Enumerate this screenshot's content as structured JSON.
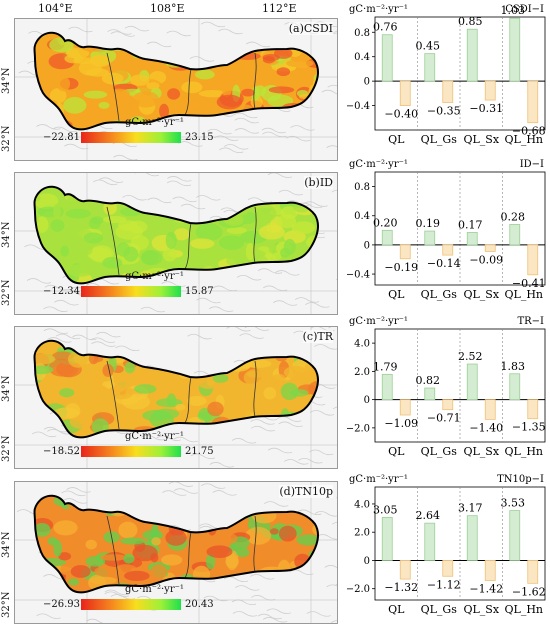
{
  "longitude_labels": [
    "104°E",
    "108°E",
    "112°E"
  ],
  "latitude_labels": [
    "34°N",
    "32°N"
  ],
  "maps": [
    {
      "label": "(a)CSDI",
      "unit": "gC·m⁻²·yr⁻¹",
      "min": "−22.81",
      "max": "23.15",
      "palette": [
        "#f5a623",
        "#f7c52a",
        "#b9e63a",
        "#ef5a2a"
      ]
    },
    {
      "label": "(b)ID",
      "unit": "gC·m⁻²·yr⁻¹",
      "min": "−12.34",
      "max": "15.87",
      "palette": [
        "#a9e23e",
        "#c7e83a",
        "#8ee044",
        "#e0e33a"
      ]
    },
    {
      "label": "(c)TR",
      "unit": "gC·m⁻²·yr⁻¹",
      "min": "−18.52",
      "max": "21.75",
      "palette": [
        "#f2b52e",
        "#f5c735",
        "#7ad84a",
        "#ef7a2b"
      ]
    },
    {
      "label": "(d)TN10p",
      "unit": "gC·m⁻²·yr⁻¹",
      "min": "−26.93",
      "max": "20.43",
      "palette": [
        "#f18c2a",
        "#f6b032",
        "#5ed24e",
        "#e8542a"
      ]
    }
  ],
  "colors": {
    "positive_fill": "#d4ecd1",
    "positive_stroke": "#9bcf95",
    "negative_fill": "#fbe6c3",
    "negative_stroke": "#efc178"
  },
  "chart_data": [
    {
      "type": "bar",
      "title": "CSDI−I",
      "ylabel": "gC·m⁻²·yr⁻¹",
      "categories": [
        "QL",
        "QL_Gs",
        "QL_Sx",
        "QL_Hn"
      ],
      "series": [
        {
          "values": [
            0.76,
            0.45,
            0.85,
            1.03
          ],
          "labels": [
            "0.76",
            "0.45",
            "0.85",
            "1.03"
          ]
        },
        {
          "values": [
            -0.4,
            -0.35,
            -0.31,
            -0.68
          ],
          "labels": [
            "−0.40",
            "−0.35",
            "−0.31",
            "−0.68"
          ]
        }
      ],
      "ylim": [
        -0.8,
        1.05
      ],
      "yticks": [
        0.8,
        0.4,
        0,
        -0.4
      ],
      "ytick_labels": [
        "0.8",
        "0.4",
        "0",
        "−0.4"
      ]
    },
    {
      "type": "bar",
      "title": "ID−I",
      "ylabel": "gC·m⁻²·yr⁻¹",
      "categories": [
        "QL",
        "QL_Gs",
        "QL_Sx",
        "QL_Hn"
      ],
      "series": [
        {
          "values": [
            0.2,
            0.19,
            0.17,
            0.28
          ],
          "labels": [
            "0.20",
            "0.19",
            "0.17",
            "0.28"
          ]
        },
        {
          "values": [
            -0.19,
            -0.14,
            -0.09,
            -0.41
          ],
          "labels": [
            "−0.19",
            "−0.14",
            "−0.09",
            "−0.41"
          ]
        }
      ],
      "ylim": [
        -0.55,
        1.0
      ],
      "yticks": [
        0.8,
        0.4,
        0,
        -0.4
      ],
      "ytick_labels": [
        "0.8",
        "0.4",
        "0",
        "−0.4"
      ]
    },
    {
      "type": "bar",
      "title": "TR−I",
      "ylabel": "gC·m⁻²·yr⁻¹",
      "categories": [
        "QL",
        "QL_Gs",
        "QL_Sx",
        "QL_Hn"
      ],
      "series": [
        {
          "values": [
            1.79,
            0.82,
            2.52,
            1.83
          ],
          "labels": [
            "1.79",
            "0.82",
            "2.52",
            "1.83"
          ]
        },
        {
          "values": [
            -1.09,
            -0.71,
            -1.4,
            -1.35
          ],
          "labels": [
            "−1.09",
            "−0.71",
            "−1.40",
            "−1.35"
          ]
        }
      ],
      "ylim": [
        -3.0,
        5.0
      ],
      "yticks": [
        4.0,
        2.0,
        0,
        -2.0
      ],
      "ytick_labels": [
        "4.0",
        "2.0",
        "0",
        "−2.0"
      ]
    },
    {
      "type": "bar",
      "title": "TN10p−I",
      "ylabel": "gC·m⁻²·yr⁻¹",
      "categories": [
        "QL",
        "QL_Gs",
        "QL_Sx",
        "QL_Hn"
      ],
      "series": [
        {
          "values": [
            3.05,
            2.64,
            3.17,
            3.53
          ],
          "labels": [
            "3.05",
            "2.64",
            "3.17",
            "3.53"
          ]
        },
        {
          "values": [
            -1.32,
            -1.12,
            -1.42,
            -1.62
          ],
          "labels": [
            "−1.32",
            "−1.12",
            "−1.42",
            "−1.62"
          ]
        }
      ],
      "ylim": [
        -2.8,
        5.2
      ],
      "yticks": [
        4.0,
        2.0,
        0,
        -2.0
      ],
      "ytick_labels": [
        "4.0",
        "2.0",
        "0",
        "−2.0"
      ]
    }
  ]
}
